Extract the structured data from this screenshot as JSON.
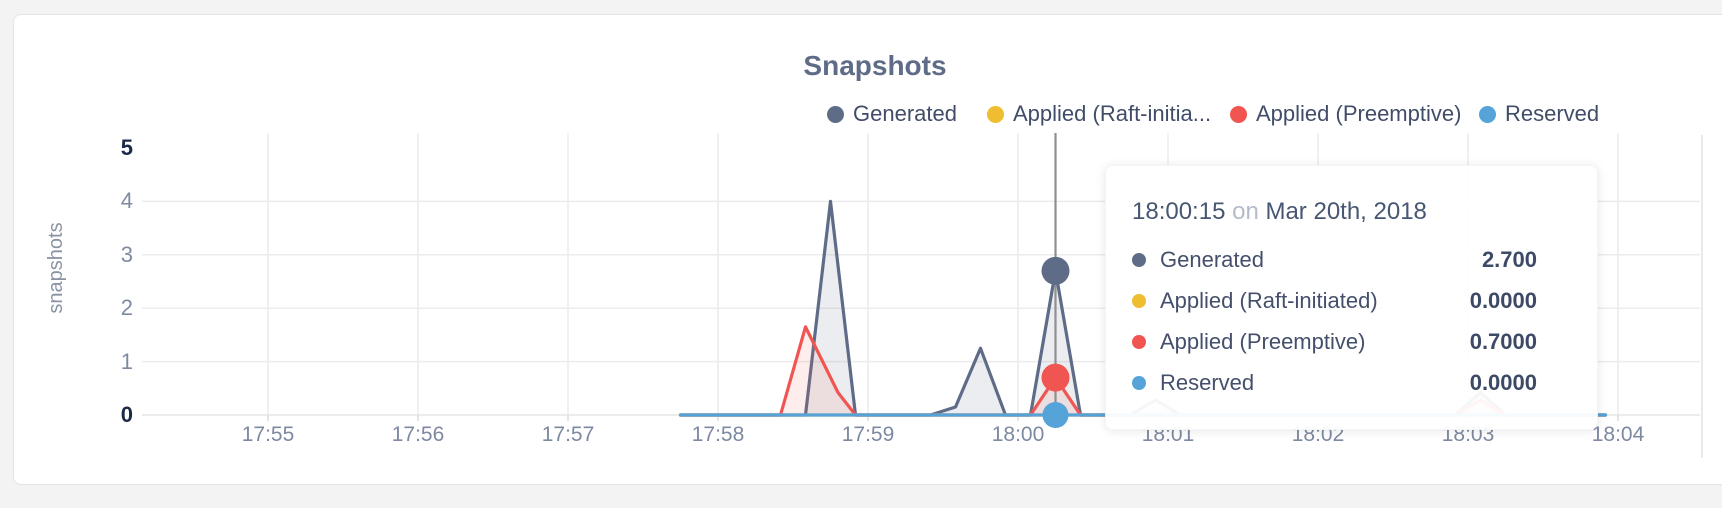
{
  "page": {
    "background": "#f3f3f4",
    "card_background": "#ffffff",
    "card_border": "#e4e4e4"
  },
  "chart_data": {
    "type": "area",
    "title": "Snapshots",
    "xlabel": "",
    "ylabel": "snapshots",
    "ylim": [
      0,
      5
    ],
    "grid": true,
    "legend_position": "top-right",
    "x_ticks": [
      "17:55",
      "17:56",
      "17:57",
      "17:58",
      "17:59",
      "18:00",
      "18:01",
      "18:02",
      "18:03",
      "18:04"
    ],
    "y_ticks": [
      0,
      1,
      2,
      3,
      4,
      5
    ],
    "legend": [
      {
        "label": "Generated",
        "color": "#5f6c87"
      },
      {
        "label": "Applied (Raft-initia...",
        "color": "#efbe30"
      },
      {
        "label": "Applied (Preemptive)",
        "color": "#f05552"
      },
      {
        "label": "Reserved",
        "color": "#55a3d8"
      }
    ],
    "series": [
      {
        "name": "Generated",
        "color": "#5f6c87",
        "fill": "rgba(95,108,135,0.12)",
        "points": [
          [
            "17:57:45",
            0
          ],
          [
            "17:58:35",
            0
          ],
          [
            "17:58:45",
            4
          ],
          [
            "17:58:55",
            0
          ],
          [
            "17:59:25",
            0
          ],
          [
            "17:59:35",
            0.15
          ],
          [
            "17:59:45",
            1.25
          ],
          [
            "17:59:55",
            0
          ],
          [
            "18:00:05",
            0
          ],
          [
            "18:00:15",
            2.7
          ],
          [
            "18:00:25",
            0
          ],
          [
            "18:00:45",
            0
          ],
          [
            "18:00:55",
            0.28
          ],
          [
            "18:01:05",
            0
          ],
          [
            "18:02:55",
            0
          ],
          [
            "18:03:05",
            0.42
          ],
          [
            "18:03:15",
            0
          ],
          [
            "18:03:55",
            0
          ]
        ]
      },
      {
        "name": "Applied (Raft-initiated)",
        "color": "#efbe30",
        "fill": "none",
        "points": [
          [
            "17:57:45",
            0
          ],
          [
            "18:03:55",
            0
          ]
        ]
      },
      {
        "name": "Applied (Preemptive)",
        "color": "#f05552",
        "fill": "rgba(240,85,82,0.10)",
        "points": [
          [
            "17:57:45",
            0
          ],
          [
            "17:58:25",
            0
          ],
          [
            "17:58:35",
            1.65
          ],
          [
            "17:58:48",
            0.42
          ],
          [
            "17:58:55",
            0
          ],
          [
            "18:00:05",
            0
          ],
          [
            "18:00:15",
            0.7
          ],
          [
            "18:00:25",
            0
          ],
          [
            "18:02:55",
            0
          ],
          [
            "18:03:05",
            0.28
          ],
          [
            "18:03:15",
            0
          ],
          [
            "18:03:55",
            0
          ]
        ]
      },
      {
        "name": "Reserved",
        "color": "#55a3d8",
        "fill": "none",
        "points": [
          [
            "17:57:45",
            0
          ],
          [
            "18:03:55",
            0
          ]
        ]
      }
    ],
    "hover": {
      "time": "18:00:15",
      "values": [
        2.7,
        0,
        0.7,
        0
      ]
    }
  },
  "tooltip": {
    "time": "18:00:15",
    "preposition": "on",
    "date": "Mar 20th, 2018",
    "rows": [
      {
        "label": "Generated",
        "value": "2.700",
        "color": "#5f6c87"
      },
      {
        "label": "Applied (Raft-initiated)",
        "value": "0.0000",
        "color": "#efbe30"
      },
      {
        "label": "Applied (Preemptive)",
        "value": "0.7000",
        "color": "#f05552"
      },
      {
        "label": "Reserved",
        "value": "0.0000",
        "color": "#55a3d8"
      }
    ]
  }
}
